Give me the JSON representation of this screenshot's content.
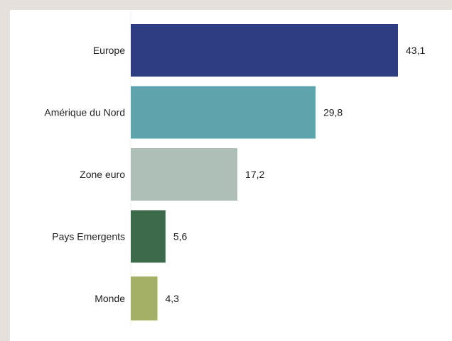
{
  "chart_data": {
    "type": "bar",
    "orientation": "horizontal",
    "categories": [
      "Europe",
      "Amérique du Nord",
      "Zone euro",
      "Pays Emergents",
      "Monde"
    ],
    "values": [
      43.1,
      29.8,
      17.2,
      5.6,
      4.3
    ],
    "value_labels": [
      "43,1",
      "29,8",
      "17,2",
      "5,6",
      "4,3"
    ],
    "colors": [
      "#2e3d82",
      "#5fa3ad",
      "#adbfb7",
      "#3d6a4b",
      "#a3b065"
    ],
    "title": "",
    "xlabel": "",
    "ylabel": "",
    "xlim": [
      0,
      43.1
    ],
    "grid": false,
    "legend": "none"
  }
}
